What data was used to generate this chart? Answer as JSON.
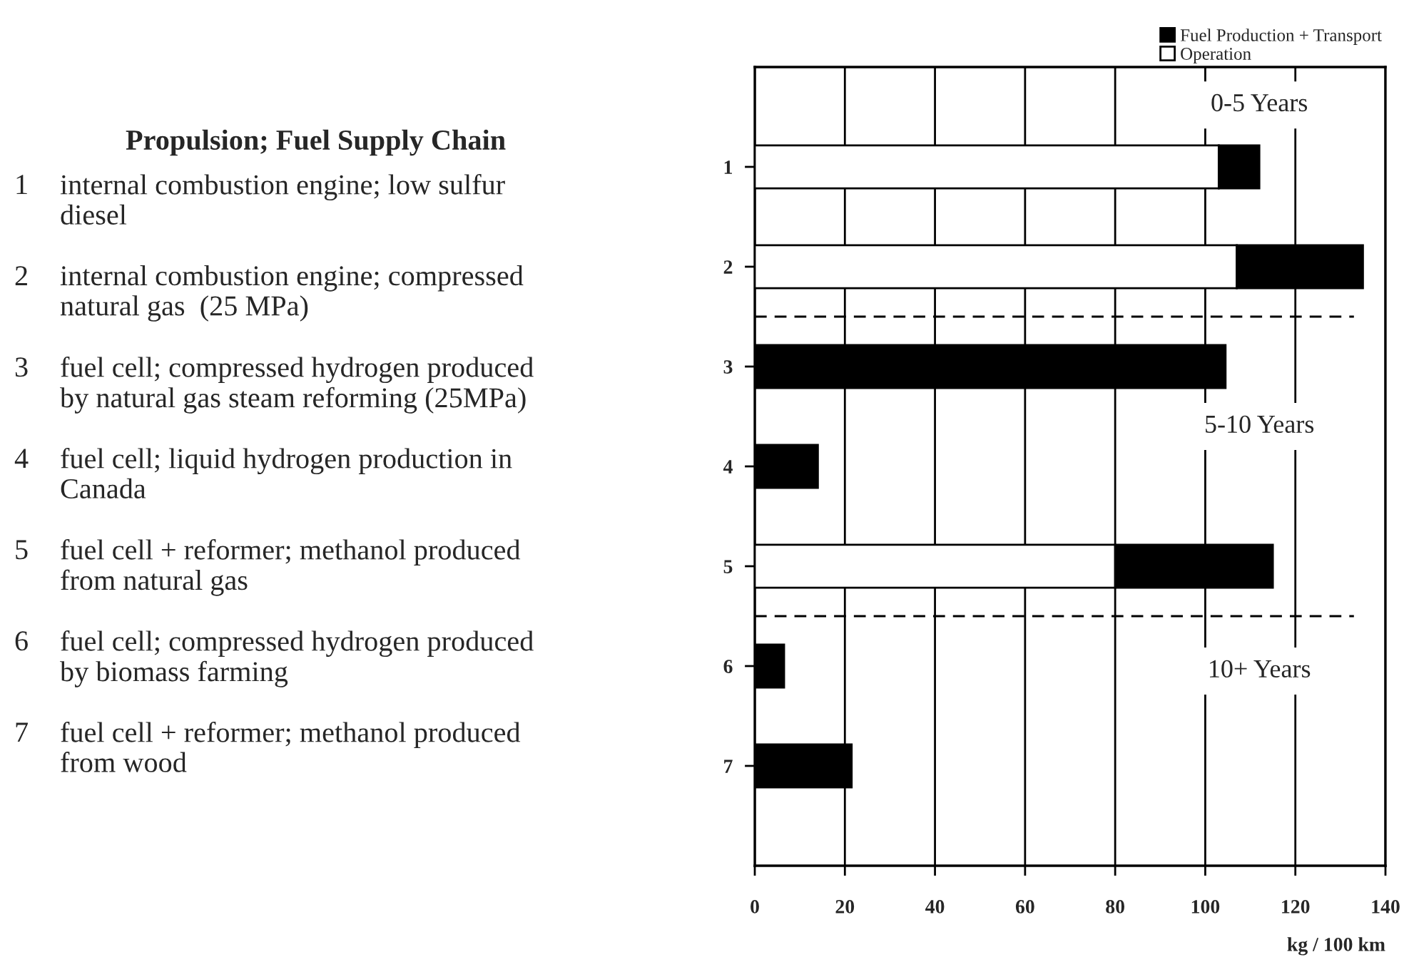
{
  "chart_data": {
    "type": "bar",
    "orientation": "horizontal",
    "stacked": true,
    "categories": [
      "1",
      "2",
      "3",
      "4",
      "5",
      "6",
      "7"
    ],
    "series": [
      {
        "name": "Operation",
        "color": "#ffffff",
        "values": [
          103,
          107,
          0,
          0,
          80,
          0,
          0
        ]
      },
      {
        "name": "Fuel Production + Transport",
        "color": "#000000",
        "values": [
          9,
          28,
          104.5,
          14,
          35,
          6.5,
          21.5
        ]
      }
    ],
    "xlim": [
      0,
      140
    ],
    "xticks": [
      0,
      20,
      40,
      60,
      80,
      100,
      120,
      140
    ],
    "xlabel": "kg / 100 km",
    "grid": "x",
    "legend": "top right",
    "annotations": [
      "Propulsion; Fuel Supply Chain",
      "1 internal combustion engine; low sulfur\ndiesel",
      "2 internal combustion engine; compressed\nnatural gas  (25 MPa)",
      "3 fuel cell; compressed hydrogen produced\nby natural gas steam reforming (25MPa)",
      "4 fuel cell; liquid hydrogen production in\nCanada",
      "5 fuel cell + reformer; methanol produced\nfrom natural gas",
      "6 fuel cell; compressed hydrogen produced\nby biomass farming",
      "7 fuel cell + reformer; methanol produced\nfrom wood",
      "0-5 Years",
      "5-10 Years",
      "10+ Years"
    ]
  }
}
